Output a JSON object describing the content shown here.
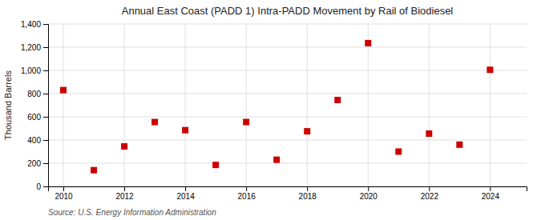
{
  "chart_data": {
    "type": "scatter",
    "title": "Annual East Coast (PADD 1) Intra-PADD Movement by Rail of Biodiesel",
    "ylabel": "Thousand Barrels",
    "source": "Source: U.S. Energy Information Administration",
    "x": [
      2010,
      2011,
      2012,
      2013,
      2014,
      2015,
      2016,
      2017,
      2018,
      2019,
      2020,
      2021,
      2022,
      2023,
      2024
    ],
    "values": [
      830,
      140,
      345,
      555,
      485,
      185,
      555,
      230,
      475,
      745,
      1235,
      300,
      455,
      360,
      1005
    ],
    "color": "#cc0000",
    "marker": "square",
    "xlim": [
      2009.5,
      2025.2
    ],
    "xticks": [
      2010,
      2012,
      2014,
      2016,
      2018,
      2020,
      2022,
      2024
    ],
    "ylim": [
      0,
      1400
    ],
    "yticks": [
      0,
      200,
      400,
      600,
      800,
      {
        "value": 1000,
        "label": "1,000"
      },
      {
        "value": 1200,
        "label": "1,200"
      },
      {
        "value": 1400,
        "label": "1,400"
      }
    ],
    "grid": true
  }
}
